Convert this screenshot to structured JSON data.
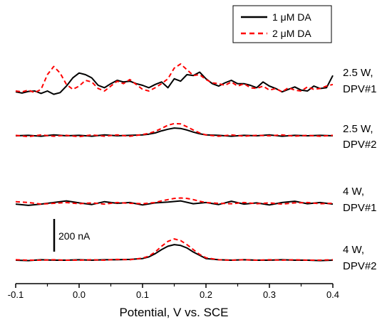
{
  "chart_data": {
    "type": "line",
    "title": "",
    "xlabel": "Potential, V vs. SCE",
    "ylabel": "",
    "xlim": [
      -0.1,
      0.4
    ],
    "x_ticks": [
      "-0.1",
      "0.0",
      "0.1",
      "0.2",
      "0.3",
      "0.4"
    ],
    "y_axis_visible": false,
    "grid": false,
    "legend_position": "top-right",
    "legend": [
      {
        "label": "1 μM DA",
        "color": "#000000",
        "style": "solid"
      },
      {
        "label": "2 μM DA",
        "color": "#ff0000",
        "style": "dashed"
      }
    ],
    "scale_bar": {
      "label": "200 nA",
      "value_nA": 200
    },
    "trace_labels": [
      {
        "line1": "2.5 W,",
        "line2": "DPV#1"
      },
      {
        "line1": "2.5 W,",
        "line2": "DPV#2"
      },
      {
        "line1": "4 W,",
        "line2": "DPV#1"
      },
      {
        "line1": "4 W,",
        "line2": "DPV#2"
      }
    ],
    "panels": [
      {
        "name": "2.5 W, DPV#1",
        "series": [
          {
            "name": "1 μM DA",
            "x": [
              -0.1,
              -0.09,
              -0.08,
              -0.07,
              -0.06,
              -0.05,
              -0.04,
              -0.03,
              -0.02,
              -0.01,
              0.0,
              0.01,
              0.02,
              0.03,
              0.04,
              0.05,
              0.06,
              0.07,
              0.08,
              0.09,
              0.1,
              0.11,
              0.12,
              0.13,
              0.14,
              0.15,
              0.16,
              0.17,
              0.18,
              0.19,
              0.2,
              0.21,
              0.22,
              0.23,
              0.24,
              0.25,
              0.26,
              0.27,
              0.28,
              0.29,
              0.3,
              0.31,
              0.32,
              0.33,
              0.34,
              0.35,
              0.36,
              0.37,
              0.38,
              0.39,
              0.4
            ],
            "y": [
              -10,
              -25,
              -5,
              0,
              -30,
              0,
              -40,
              -20,
              60,
              160,
              220,
              200,
              160,
              70,
              40,
              90,
              130,
              110,
              120,
              90,
              70,
              40,
              80,
              110,
              40,
              150,
              120,
              200,
              190,
              230,
              150,
              90,
              60,
              100,
              130,
              90,
              90,
              70,
              40,
              110,
              60,
              30,
              -10,
              20,
              50,
              10,
              0,
              60,
              30,
              40,
              190
            ]
          },
          {
            "name": "2 μM DA",
            "x": [
              -0.1,
              -0.09,
              -0.08,
              -0.07,
              -0.06,
              -0.05,
              -0.04,
              -0.03,
              -0.02,
              -0.01,
              0.0,
              0.01,
              0.02,
              0.03,
              0.04,
              0.05,
              0.06,
              0.07,
              0.08,
              0.09,
              0.1,
              0.11,
              0.12,
              0.13,
              0.14,
              0.15,
              0.16,
              0.17,
              0.18,
              0.19,
              0.2,
              0.21,
              0.22,
              0.23,
              0.24,
              0.25,
              0.26,
              0.27,
              0.28,
              0.29,
              0.3,
              0.31,
              0.32,
              0.33,
              0.34,
              0.35,
              0.36,
              0.37,
              0.38,
              0.39,
              0.4
            ],
            "y": [
              0,
              -10,
              10,
              -20,
              20,
              200,
              300,
              220,
              80,
              20,
              60,
              130,
              110,
              30,
              0,
              60,
              120,
              90,
              140,
              80,
              20,
              0,
              40,
              90,
              150,
              280,
              330,
              260,
              190,
              200,
              140,
              100,
              90,
              70,
              110,
              60,
              90,
              40,
              30,
              60,
              10,
              30,
              -10,
              40,
              10,
              0,
              50,
              20,
              30,
              60,
              80
            ]
          }
        ]
      },
      {
        "name": "2.5 W, DPV#2",
        "series": [
          {
            "name": "1 μM DA",
            "x": [
              -0.1,
              -0.08,
              -0.06,
              -0.04,
              -0.02,
              0.0,
              0.02,
              0.04,
              0.06,
              0.08,
              0.1,
              0.11,
              0.12,
              0.13,
              0.14,
              0.15,
              0.16,
              0.17,
              0.18,
              0.19,
              0.2,
              0.22,
              0.24,
              0.26,
              0.28,
              0.3,
              0.32,
              0.34,
              0.36,
              0.38,
              0.4
            ],
            "y": [
              0,
              5,
              -5,
              10,
              0,
              5,
              -5,
              10,
              0,
              5,
              10,
              20,
              35,
              60,
              80,
              95,
              90,
              70,
              45,
              25,
              10,
              5,
              -5,
              5,
              0,
              10,
              -5,
              5,
              0,
              5,
              0
            ]
          },
          {
            "name": "2 μM DA",
            "x": [
              -0.1,
              -0.08,
              -0.06,
              -0.04,
              -0.02,
              0.0,
              0.02,
              0.04,
              0.06,
              0.08,
              0.1,
              0.11,
              0.12,
              0.13,
              0.14,
              0.15,
              0.16,
              0.17,
              0.18,
              0.19,
              0.2,
              0.22,
              0.24,
              0.26,
              0.28,
              0.3,
              0.32,
              0.34,
              0.36,
              0.38,
              0.4
            ],
            "y": [
              5,
              -10,
              10,
              -5,
              5,
              -10,
              10,
              -5,
              10,
              -5,
              15,
              30,
              55,
              90,
              130,
              150,
              145,
              110,
              70,
              35,
              10,
              -5,
              10,
              -5,
              5,
              0,
              10,
              -5,
              5,
              -5,
              5
            ]
          }
        ]
      },
      {
        "name": "4 W, DPV#1",
        "series": [
          {
            "name": "1 μM DA",
            "x": [
              -0.1,
              -0.08,
              -0.06,
              -0.04,
              -0.02,
              0.0,
              0.02,
              0.04,
              0.06,
              0.08,
              0.1,
              0.12,
              0.14,
              0.16,
              0.18,
              0.2,
              0.22,
              0.24,
              0.26,
              0.28,
              0.3,
              0.32,
              0.34,
              0.36,
              0.38,
              0.4
            ],
            "y": [
              -10,
              -25,
              -10,
              10,
              30,
              5,
              -15,
              20,
              0,
              10,
              -20,
              5,
              15,
              30,
              -5,
              10,
              -15,
              25,
              -10,
              5,
              -20,
              10,
              25,
              -5,
              10,
              -10
            ]
          },
          {
            "name": "2 μM DA",
            "x": [
              -0.1,
              -0.08,
              -0.06,
              -0.04,
              -0.02,
              0.0,
              0.02,
              0.04,
              0.06,
              0.08,
              0.1,
              0.12,
              0.13,
              0.14,
              0.15,
              0.16,
              0.17,
              0.18,
              0.19,
              0.2,
              0.22,
              0.24,
              0.26,
              0.28,
              0.3,
              0.32,
              0.34,
              0.36,
              0.38,
              0.4
            ],
            "y": [
              20,
              10,
              -10,
              0,
              10,
              -5,
              5,
              -10,
              10,
              0,
              -5,
              10,
              30,
              45,
              60,
              65,
              60,
              45,
              25,
              10,
              0,
              -5,
              10,
              -5,
              5,
              -10,
              5,
              10,
              -5,
              0
            ]
          }
        ]
      },
      {
        "name": "4 W, DPV#2",
        "series": [
          {
            "name": "1 μM DA",
            "x": [
              -0.1,
              -0.08,
              -0.06,
              -0.04,
              -0.02,
              0.0,
              0.02,
              0.04,
              0.06,
              0.08,
              0.1,
              0.11,
              0.12,
              0.13,
              0.14,
              0.15,
              0.16,
              0.17,
              0.18,
              0.19,
              0.2,
              0.22,
              0.24,
              0.26,
              0.28,
              0.3,
              0.32,
              0.34,
              0.36,
              0.38,
              0.4
            ],
            "y": [
              0,
              -5,
              5,
              0,
              0,
              5,
              0,
              5,
              5,
              10,
              20,
              40,
              80,
              130,
              170,
              190,
              180,
              150,
              100,
              60,
              20,
              5,
              0,
              5,
              0,
              0,
              5,
              0,
              0,
              -5,
              0
            ]
          },
          {
            "name": "2 μM DA",
            "x": [
              -0.1,
              -0.08,
              -0.06,
              -0.04,
              -0.02,
              0.0,
              0.02,
              0.04,
              0.06,
              0.08,
              0.1,
              0.11,
              0.12,
              0.13,
              0.14,
              0.15,
              0.16,
              0.17,
              0.18,
              0.19,
              0.2,
              0.22,
              0.24,
              0.26,
              0.28,
              0.3,
              0.32,
              0.34,
              0.36,
              0.38,
              0.4
            ],
            "y": [
              5,
              0,
              0,
              5,
              0,
              0,
              5,
              0,
              10,
              5,
              25,
              50,
              100,
              170,
              230,
              260,
              240,
              190,
              130,
              70,
              30,
              5,
              0,
              5,
              0,
              5,
              0,
              5,
              0,
              0,
              5
            ]
          }
        ]
      }
    ]
  }
}
